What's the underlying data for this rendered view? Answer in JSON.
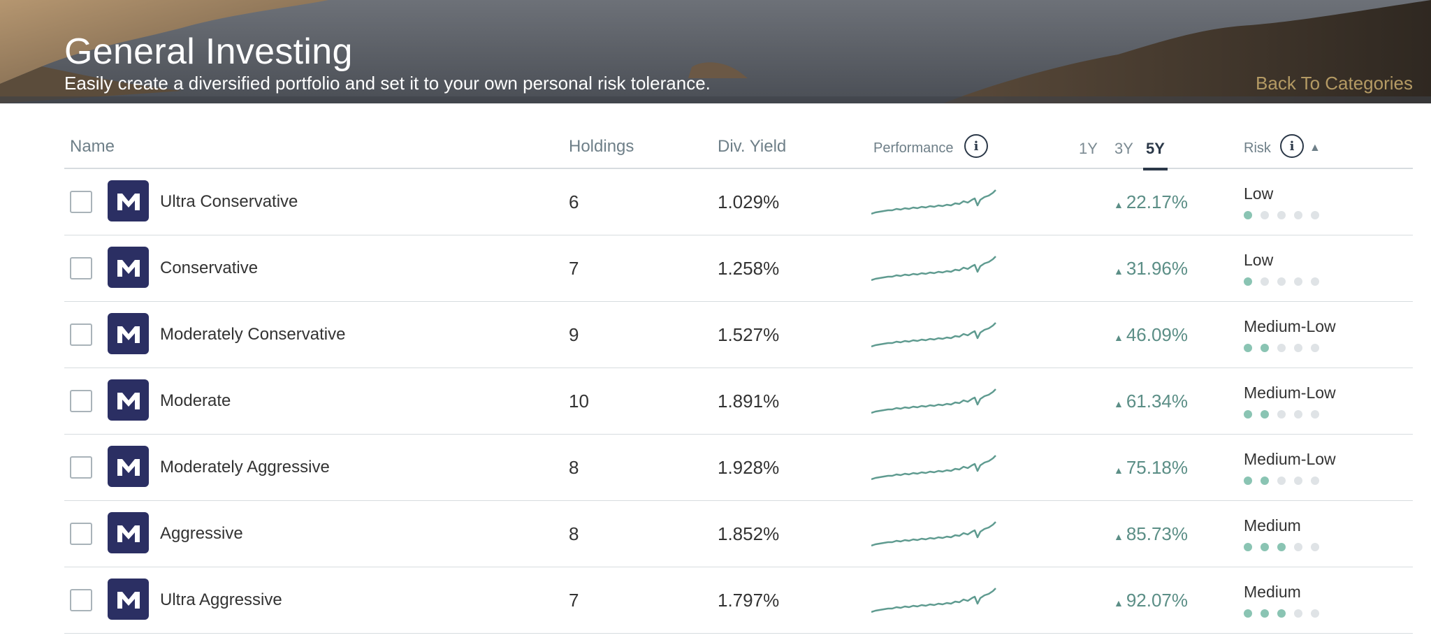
{
  "hero": {
    "title": "General Investing",
    "subtitle": "Easily create a diversified portfolio and set it to your own personal risk tolerance.",
    "back_link": "Back To Categories"
  },
  "table": {
    "headers": {
      "name": "Name",
      "holdings": "Holdings",
      "div_yield": "Div. Yield",
      "performance": "Performance",
      "risk": "Risk"
    },
    "periods": [
      "1Y",
      "3Y",
      "5Y"
    ],
    "selected_period": "5Y",
    "sort_indicator": "▲",
    "info_icon_glyph": "i",
    "rows": [
      {
        "name": "Ultra Conservative",
        "holdings": "6",
        "div_yield": "1.029%",
        "return": "22.17%",
        "risk": "Low",
        "risk_level": 1
      },
      {
        "name": "Conservative",
        "holdings": "7",
        "div_yield": "1.258%",
        "return": "31.96%",
        "risk": "Low",
        "risk_level": 1
      },
      {
        "name": "Moderately Conservative",
        "holdings": "9",
        "div_yield": "1.527%",
        "return": "46.09%",
        "risk": "Medium-Low",
        "risk_level": 2
      },
      {
        "name": "Moderate",
        "holdings": "10",
        "div_yield": "1.891%",
        "return": "61.34%",
        "risk": "Medium-Low",
        "risk_level": 2
      },
      {
        "name": "Moderately Aggressive",
        "holdings": "8",
        "div_yield": "1.928%",
        "return": "75.18%",
        "risk": "Medium-Low",
        "risk_level": 2
      },
      {
        "name": "Aggressive",
        "holdings": "8",
        "div_yield": "1.852%",
        "return": "85.73%",
        "risk": "Medium",
        "risk_level": 3
      },
      {
        "name": "Ultra Aggressive",
        "holdings": "7",
        "div_yield": "1.797%",
        "return": "92.07%",
        "risk": "Medium",
        "risk_level": 3
      }
    ]
  },
  "icons": {
    "logo": "m1-logo-icon",
    "info": "info-icon",
    "sort": "sort-up-icon",
    "return_arrow": "up-triangle-icon"
  },
  "colors": {
    "accent_gold": "#b49a64",
    "logo_bg": "#2b2f63",
    "positive_green": "#5b8e86",
    "risk_dot_on": "#8ac4b3",
    "risk_dot_off": "#dfe3e6",
    "selected_period": "#2b3848"
  }
}
